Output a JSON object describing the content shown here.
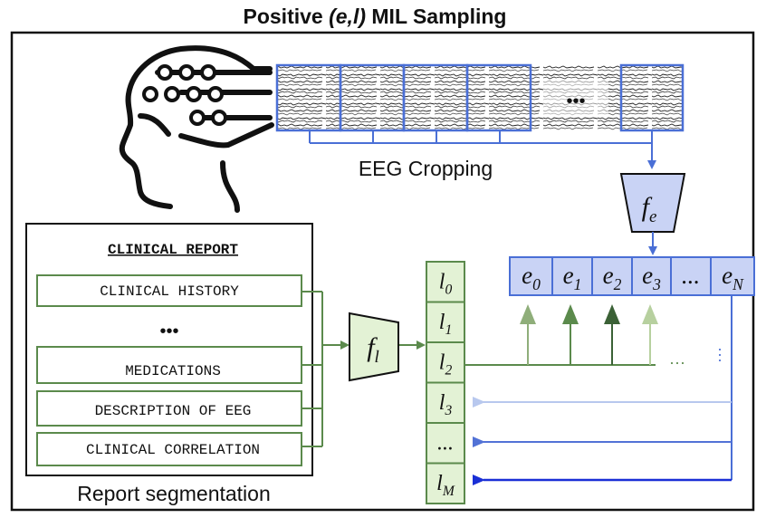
{
  "title": {
    "prefix": "Positive ",
    "italic": "(e,l)",
    "suffix": " MIL Sampling"
  },
  "eeg": {
    "cropping_label": "EEG Cropping",
    "ellipsis": "•••"
  },
  "encoders": {
    "eeg_symbol": "f",
    "eeg_subscript": "e",
    "text_symbol": "f",
    "text_subscript": "l"
  },
  "report": {
    "title": "CLINICAL REPORT",
    "sections": [
      "CLINICAL HISTORY",
      "MEDICATIONS",
      "DESCRIPTION OF EEG",
      "CLINICAL CORRELATION"
    ],
    "ellipsis": "•••",
    "caption": "Report segmentation"
  },
  "eeg_embeddings": [
    {
      "base": "e",
      "sub": "0"
    },
    {
      "base": "e",
      "sub": "1"
    },
    {
      "base": "e",
      "sub": "2"
    },
    {
      "base": "e",
      "sub": "3"
    },
    {
      "base": "...",
      "sub": ""
    },
    {
      "base": "e",
      "sub": "N"
    }
  ],
  "text_embeddings": [
    {
      "base": "l",
      "sub": "0"
    },
    {
      "base": "l",
      "sub": "1"
    },
    {
      "base": "l",
      "sub": "2"
    },
    {
      "base": "l",
      "sub": "3"
    },
    {
      "base": "...",
      "sub": ""
    },
    {
      "base": "l",
      "sub": "M"
    }
  ],
  "colors": {
    "blue_line": "#4a6fd6",
    "blue_fill": "#c9d3f5",
    "green_line": "#5b8a4c",
    "green_fill": "#e3f2d5",
    "arrow_light_blue": "#b8c8ee",
    "arrow_mid_blue": "#5272d6",
    "arrow_dark_blue": "#1a2fd6"
  },
  "head_icon": "human-head-brain-circuit-icon"
}
